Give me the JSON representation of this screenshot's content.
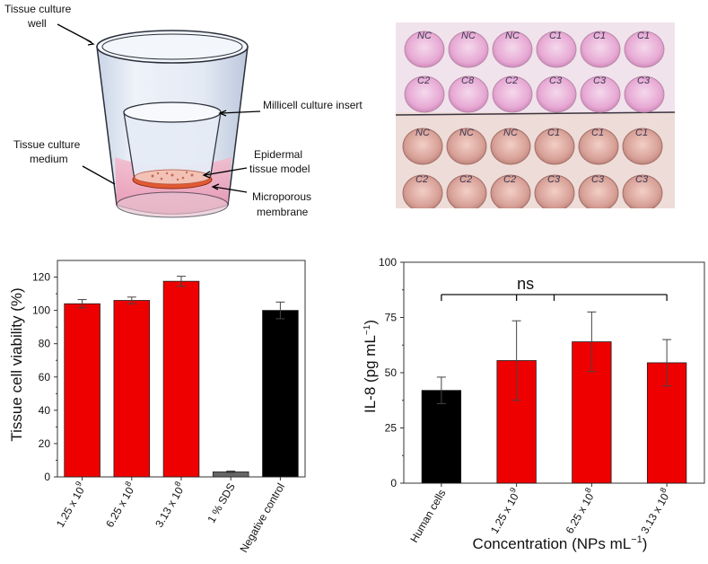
{
  "illustration": {
    "labels": {
      "well_line1": "Tissue culture",
      "well_line2": "well",
      "insert": "Millicell culture insert",
      "medium_line1": "Tissue culture",
      "medium_line2": "medium",
      "epidermal_line1": "Epidermal",
      "epidermal_line2": "tissue model",
      "membrane_line1": "Microporous",
      "membrane_line2": "membrane"
    }
  },
  "photo": {
    "well_labels": [
      [
        "NC",
        "NC",
        "NC",
        "C1",
        "C1",
        "C1"
      ],
      [
        "C2",
        "C8",
        "C2",
        "C3",
        "C3",
        "C3"
      ],
      [
        "NC",
        "NC",
        "NC",
        "C1",
        "C1",
        "C1"
      ],
      [
        "C2",
        "C2",
        "C2",
        "C3",
        "C3",
        "C3"
      ]
    ]
  },
  "chart_data": [
    {
      "type": "bar",
      "ylabel": "Tissue cell viability (%)",
      "xlabel": "",
      "ylim": [
        0,
        130
      ],
      "yticks": [
        0,
        20,
        40,
        60,
        80,
        100,
        120
      ],
      "categories": [
        {
          "base": "1.25 x 10",
          "exp": "9"
        },
        {
          "base": "6.25 x 10",
          "exp": "8"
        },
        {
          "base": "3.13 x 10",
          "exp": "8"
        },
        {
          "base": "1 % SDS",
          "exp": ""
        },
        {
          "base": "Negative control",
          "exp": ""
        }
      ],
      "values": [
        104,
        106,
        117.5,
        3,
        100
      ],
      "errors": [
        2.5,
        2,
        3,
        0.5,
        5
      ],
      "colors": [
        "#ee0000",
        "#ee0000",
        "#ee0000",
        "#666666",
        "#000000"
      ]
    },
    {
      "type": "bar",
      "ylabel": "IL-8 (pg mL",
      "ylabel_exp": "−1",
      "ylabel_close": ")",
      "xlabel": "Concentration (NPs mL",
      "xlabel_exp": "−1",
      "xlabel_close": ")",
      "ylim": [
        0,
        100
      ],
      "yticks": [
        0,
        25,
        50,
        75,
        100
      ],
      "categories": [
        {
          "base": "Human cells",
          "exp": ""
        },
        {
          "base": "1.25 x 10",
          "exp": "9"
        },
        {
          "base": "6.25 x 10",
          "exp": "8"
        },
        {
          "base": "3.13 x 10",
          "exp": "8"
        }
      ],
      "values": [
        42,
        55.5,
        64,
        54.5
      ],
      "errors": [
        6,
        18,
        13.5,
        10.5
      ],
      "colors": [
        "#000000",
        "#ee0000",
        "#ee0000",
        "#ee0000"
      ],
      "annotation": "ns"
    }
  ]
}
